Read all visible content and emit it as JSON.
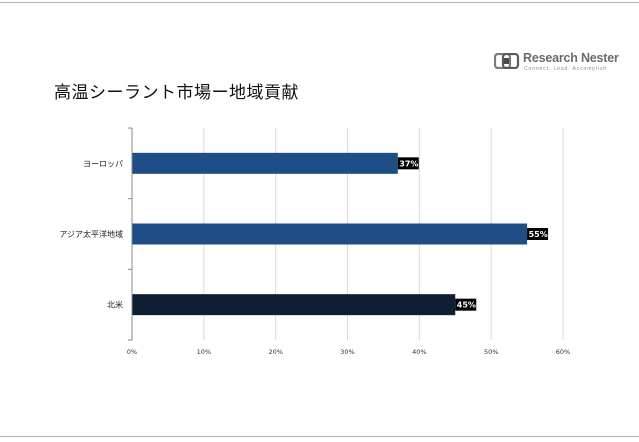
{
  "title": "高温シーラント市場ー地域貢献",
  "logo": {
    "name": "Research Nester",
    "tagline": "Connect. Lead. Accomplish"
  },
  "colors": {
    "bar_europe": "#1f4e87",
    "bar_apac": "#1f4e87",
    "bar_na": "#0e1f33",
    "label_bg": "#000000",
    "gridline": "#d9d9d9",
    "axis": "#888888"
  },
  "chart_data": {
    "type": "bar",
    "orientation": "horizontal",
    "categories": [
      "ヨーロッパ",
      "アジア太平洋地域",
      "北米"
    ],
    "values": [
      37,
      55,
      45
    ],
    "value_labels": [
      "37%",
      "55%",
      "45%"
    ],
    "xlim": [
      0,
      60
    ],
    "xticks": [
      0,
      10,
      20,
      30,
      40,
      50,
      60
    ],
    "xtick_labels": [
      "0%",
      "10%",
      "20%",
      "30%",
      "40%",
      "50%",
      "60%"
    ],
    "grid": true,
    "legend": "none"
  }
}
